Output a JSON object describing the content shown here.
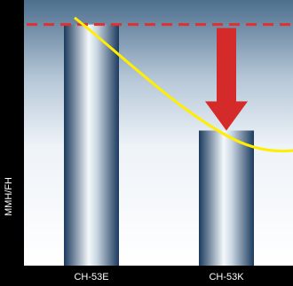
{
  "chart_data": {
    "type": "bar",
    "categories": [
      "CH-53E",
      "CH-53K"
    ],
    "values": [
      100,
      56
    ],
    "ylabel": "MMH/FH",
    "xlabel": "",
    "title": "",
    "ylim": [
      0,
      105
    ],
    "reference_line": {
      "value": 100,
      "style": "dashed",
      "color": "#e03030"
    },
    "trend_curve": {
      "color": "#ffee00"
    },
    "arrow": {
      "from": 100,
      "to": 56,
      "color": "#d42a2a"
    },
    "grid": false,
    "legend": "none"
  }
}
